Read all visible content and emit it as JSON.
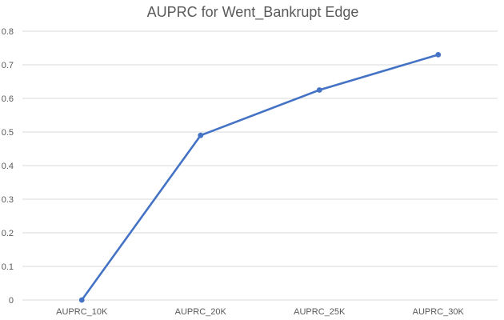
{
  "chart_data": {
    "type": "line",
    "title": "AUPRC for Went_Bankrupt Edge",
    "xlabel": "",
    "ylabel": "",
    "categories": [
      "AUPRC_10K",
      "AUPRC_20K",
      "AUPRC_25K",
      "AUPRC_30K"
    ],
    "series": [
      {
        "values": [
          0.0,
          0.49,
          0.625,
          0.73
        ],
        "color": "#4472c4"
      }
    ],
    "ylim": [
      0,
      0.8
    ],
    "yticks": [
      "0",
      "0.1",
      "0.2",
      "0.3",
      "0.4",
      "0.5",
      "0.6",
      "0.7",
      "0.8"
    ],
    "grid": true,
    "legend": "none"
  }
}
